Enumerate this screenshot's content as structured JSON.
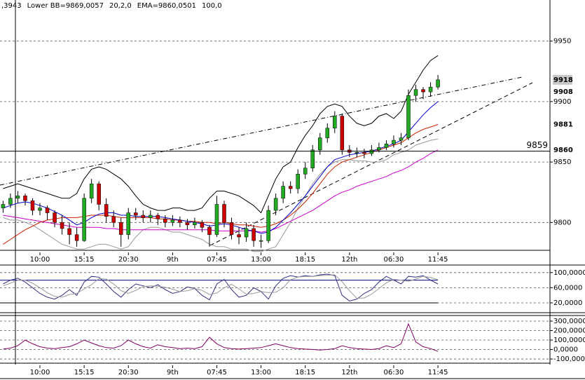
{
  "chart_data": [
    {
      "type": "candlestick",
      "legend_texts": [
        {
          "text": ",3943",
          "color": "#888888"
        },
        {
          "text": "Lower BB=9869,0057",
          "color": "#999999"
        },
        {
          "text": "20,2,0",
          "color": "#000080"
        },
        {
          "text": "EMA=9860,0501",
          "color": "#cc00cc"
        },
        {
          "text": "100,0",
          "color": "#cc00cc"
        }
      ],
      "categories": [
        null,
        null,
        null,
        null,
        null,
        "10:00",
        null,
        null,
        null,
        null,
        null,
        "15:15",
        null,
        null,
        null,
        null,
        null,
        "20:30",
        null,
        null,
        null,
        null,
        null,
        "9th",
        null,
        null,
        null,
        null,
        null,
        "07:45",
        null,
        null,
        null,
        null,
        null,
        "13:00",
        null,
        null,
        null,
        null,
        null,
        "18:15",
        null,
        null,
        null,
        null,
        null,
        "12th",
        null,
        null,
        null,
        null,
        null,
        "06:30",
        null,
        null,
        null,
        null,
        null,
        "11:45"
      ],
      "open": [
        9812,
        9815,
        9820,
        9822,
        9818,
        9810,
        9812,
        9808,
        9800,
        9795,
        9790,
        9785,
        9820,
        9832,
        9815,
        9805,
        9800,
        9790,
        9808,
        9806,
        9804,
        9806,
        9803,
        9800,
        9802,
        9800,
        9798,
        9800,
        9796,
        9790,
        9815,
        9800,
        9790,
        9788,
        9795,
        9785,
        9785,
        9810,
        9820,
        9830,
        9828,
        9840,
        9845,
        9860,
        9870,
        9878,
        9888,
        9860,
        9858,
        9858,
        9857,
        9860,
        9862,
        9865,
        9868,
        9870,
        9905,
        9910,
        9908,
        9912
      ],
      "high": [
        9818,
        9824,
        9826,
        9824,
        9820,
        9816,
        9814,
        9810,
        9806,
        9800,
        9796,
        9824,
        9836,
        9834,
        9820,
        9810,
        9804,
        9812,
        9812,
        9810,
        9810,
        9808,
        9806,
        9806,
        9805,
        9803,
        9804,
        9802,
        9798,
        9822,
        9818,
        9804,
        9796,
        9800,
        9798,
        9790,
        9814,
        9824,
        9834,
        9834,
        9844,
        9850,
        9864,
        9874,
        9882,
        9892,
        9890,
        9864,
        9862,
        9861,
        9864,
        9866,
        9868,
        9872,
        9874,
        9910,
        9914,
        9912,
        9916,
        9922
      ],
      "low": [
        9808,
        9812,
        9816,
        9814,
        9806,
        9806,
        9802,
        9796,
        9790,
        9782,
        9780,
        9784,
        9816,
        9810,
        9800,
        9796,
        9780,
        9786,
        9802,
        9800,
        9800,
        9798,
        9796,
        9797,
        9796,
        9794,
        9795,
        9792,
        9780,
        9788,
        9796,
        9786,
        9782,
        9784,
        9780,
        9779,
        9783,
        9806,
        9816,
        9824,
        9824,
        9836,
        9842,
        9856,
        9866,
        9874,
        9856,
        9854,
        9854,
        9853,
        9855,
        9858,
        9860,
        9862,
        9864,
        9868,
        9900,
        9902,
        9904,
        9910
      ],
      "close": [
        9815,
        9820,
        9822,
        9818,
        9810,
        9812,
        9808,
        9800,
        9795,
        9790,
        9785,
        9820,
        9832,
        9815,
        9805,
        9800,
        9790,
        9808,
        9806,
        9804,
        9806,
        9803,
        9800,
        9802,
        9800,
        9798,
        9800,
        9796,
        9790,
        9815,
        9800,
        9790,
        9788,
        9795,
        9785,
        9785,
        9810,
        9820,
        9830,
        9828,
        9840,
        9845,
        9860,
        9870,
        9878,
        9888,
        9860,
        9858,
        9858,
        9857,
        9860,
        9862,
        9865,
        9868,
        9870,
        9905,
        9910,
        9908,
        9912,
        9918
      ],
      "up_color": "#22aa22",
      "down_color": "#cc0000",
      "series": [
        {
          "color": "#000000",
          "values": [
            9828,
            9830,
            9832,
            9830,
            9828,
            9826,
            9824,
            9822,
            9820,
            9820,
            9824,
            9836,
            9844,
            9846,
            9844,
            9840,
            9836,
            9830,
            9822,
            9815,
            9812,
            9810,
            9810,
            9812,
            9812,
            9810,
            9810,
            9812,
            9820,
            9826,
            9826,
            9824,
            9822,
            9818,
            9814,
            9808,
            9822,
            9836,
            9846,
            9850,
            9862,
            9872,
            9880,
            9890,
            9896,
            9898,
            9896,
            9888,
            9882,
            9880,
            9882,
            9888,
            9890,
            9886,
            9892,
            9906,
            9916,
            9926,
            9934,
            9938
          ]
        },
        {
          "color": "#999999",
          "values": [
            9804,
            9802,
            9802,
            9800,
            9798,
            9794,
            9790,
            9786,
            9782,
            9780,
            9778,
            9778,
            9780,
            9782,
            9782,
            9780,
            9778,
            9780,
            9788,
            9794,
            9796,
            9796,
            9794,
            9792,
            9792,
            9790,
            9788,
            9786,
            9782,
            9780,
            9780,
            9778,
            9778,
            9778,
            9776,
            9776,
            9778,
            9780,
            9790,
            9800,
            9812,
            9822,
            9832,
            9840,
            9846,
            9850,
            9852,
            9852,
            9851,
            9851,
            9850,
            9850,
            9852,
            9856,
            9858,
            9860,
            9864,
            9866,
            9868,
            9869
          ]
        },
        {
          "color": "#cc00cc",
          "values": [
            9806,
            9805,
            9804,
            9803,
            9802,
            9801,
            9800,
            9799,
            9798,
            9797,
            9796,
            9796,
            9796,
            9796,
            9795,
            9795,
            9794,
            9794,
            9794,
            9794,
            9794,
            9794,
            9794,
            9794,
            9794,
            9794,
            9794,
            9794,
            9794,
            9793,
            9793,
            9793,
            9793,
            9793,
            9793,
            9792,
            9793,
            9795,
            9798,
            9801,
            9804,
            9807,
            9810,
            9814,
            9818,
            9822,
            9825,
            9827,
            9830,
            9832,
            9834,
            9836,
            9838,
            9841,
            9843,
            9846,
            9850,
            9853,
            9857,
            9860
          ]
        },
        {
          "color": "#cc2200",
          "values": [
            9782,
            9786,
            9790,
            9794,
            9797,
            9800,
            9802,
            9803,
            9804,
            9804,
            9804,
            9805,
            9806,
            9806,
            9806,
            9805,
            9804,
            9804,
            9804,
            9804,
            9804,
            9803,
            9803,
            9802,
            9802,
            9801,
            9801,
            9800,
            9800,
            9799,
            9800,
            9799,
            9798,
            9798,
            9797,
            9796,
            9797,
            9799,
            9802,
            9806,
            9811,
            9817,
            9824,
            9832,
            9840,
            9846,
            9850,
            9852,
            9854,
            9856,
            9858,
            9860,
            9862,
            9864,
            9866,
            9870,
            9874,
            9877,
            9879,
            9881
          ]
        },
        {
          "color": "#0000cc",
          "values": [
            9812,
            9814,
            9816,
            9817,
            9816,
            9814,
            9812,
            9809,
            9806,
            9802,
            9798,
            9800,
            9804,
            9807,
            9808,
            9808,
            9806,
            9806,
            9805,
            9805,
            9805,
            9805,
            9804,
            9803,
            9802,
            9801,
            9800,
            9799,
            9797,
            9798,
            9799,
            9798,
            9796,
            9794,
            9793,
            9791,
            9792,
            9796,
            9802,
            9808,
            9815,
            9822,
            9830,
            9838,
            9846,
            9852,
            9854,
            9856,
            9857,
            9858,
            9859,
            9861,
            9863,
            9865,
            9868,
            9875,
            9882,
            9889,
            9895,
            9900
          ]
        }
      ],
      "horizontal_line": {
        "value": 9859,
        "color": "#000000"
      },
      "price_labels": [
        {
          "value": 9918,
          "color": "#000000",
          "background": "#c8c8c8"
        },
        {
          "value": 9908,
          "color": "#e08040"
        },
        {
          "value": 9881,
          "color": "#cc0000"
        },
        {
          "value": 9860,
          "color": "#cc00cc"
        }
      ],
      "ylim": [
        9777,
        9984
      ],
      "yticks": [
        9800,
        9850,
        9900,
        9950
      ],
      "grid": true
    },
    {
      "type": "line",
      "series": [
        {
          "color": "#303080",
          "values": [
            70,
            80,
            85,
            75,
            60,
            45,
            35,
            30,
            40,
            55,
            40,
            75,
            90,
            88,
            70,
            50,
            35,
            55,
            70,
            65,
            60,
            68,
            55,
            45,
            50,
            62,
            58,
            40,
            28,
            70,
            82,
            55,
            35,
            40,
            60,
            50,
            30,
            65,
            85,
            92,
            88,
            92,
            90,
            94,
            96,
            92,
            40,
            25,
            30,
            45,
            55,
            75,
            90,
            80,
            70,
            90,
            88,
            92,
            80,
            70
          ]
        },
        {
          "color": "#999999",
          "values": [
            65,
            72,
            80,
            80,
            72,
            60,
            47,
            37,
            35,
            42,
            45,
            57,
            68,
            84,
            83,
            70,
            52,
            45,
            53,
            63,
            65,
            64,
            61,
            56,
            50,
            52,
            58,
            53,
            42,
            46,
            60,
            69,
            57,
            43,
            45,
            50,
            47,
            48,
            60,
            81,
            88,
            90,
            90,
            92,
            93,
            94,
            76,
            52,
            32,
            33,
            43,
            58,
            73,
            82,
            80,
            77,
            83,
            90,
            87,
            81
          ]
        }
      ],
      "levels": [
        {
          "value": 80,
          "color": "#000080"
        },
        {
          "value": 20,
          "color": "#000000"
        }
      ],
      "ylim": [
        -6,
        120
      ],
      "yticks": [
        {
          "value": 20,
          "label": "20,0000"
        },
        {
          "value": 60,
          "label": "60,0000"
        },
        {
          "value": 100,
          "label": "100,0000"
        }
      ],
      "grid": true
    },
    {
      "type": "line",
      "series": [
        {
          "color": "#800060",
          "values": [
            5,
            15,
            40,
            100,
            60,
            30,
            15,
            10,
            20,
            30,
            60,
            100,
            70,
            40,
            20,
            15,
            40,
            100,
            60,
            30,
            15,
            50,
            30,
            20,
            10,
            15,
            10,
            30,
            130,
            60,
            20,
            10,
            5,
            10,
            15,
            20,
            40,
            60,
            40,
            20,
            10,
            5,
            0,
            -5,
            0,
            10,
            40,
            20,
            10,
            5,
            0,
            10,
            40,
            20,
            60,
            270,
            80,
            30,
            10,
            -20
          ]
        }
      ],
      "ylim": [
        -144,
        359
      ],
      "yticks": [
        {
          "value": -100,
          "label": "-100,0000"
        },
        {
          "value": 0,
          "label": "0,0000"
        },
        {
          "value": 100,
          "label": "100,0000"
        },
        {
          "value": 200,
          "label": "200,0000"
        },
        {
          "value": 300,
          "label": "300,0000"
        }
      ],
      "grid": true
    }
  ]
}
